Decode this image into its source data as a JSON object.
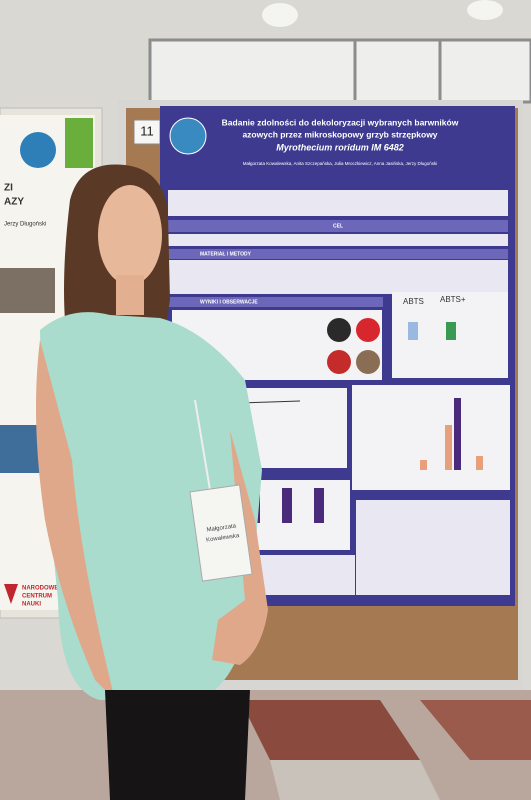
{
  "sign": "11",
  "poster": {
    "title_lines": [
      "Badanie zdolności do dekoloryzacji wybranych barwników",
      "azowych przez mikroskopowy grzyb strzępkowy"
    ],
    "species": "Myrothecium roridum IM 6482",
    "authors": "Małgorzata Kowalewska, Anita Szczepańska, Julia Mroczkiewicz, Anna Jasińska, Jerzy Długoński",
    "sections": [
      "CEL",
      "MATERIAŁ I METODY",
      "WYNIKI I OBSERWACJE"
    ],
    "abts": [
      "ABTS",
      "ABTS+"
    ]
  },
  "badge": [
    "Małgorzata",
    "Kowalewska"
  ],
  "left_poster": {
    "lines": [
      "ZI",
      "AZY"
    ],
    "author": "Jerzy Długoński"
  },
  "sponsor": [
    "NARODOWE",
    "CENTRUM",
    "NAUKI"
  ]
}
